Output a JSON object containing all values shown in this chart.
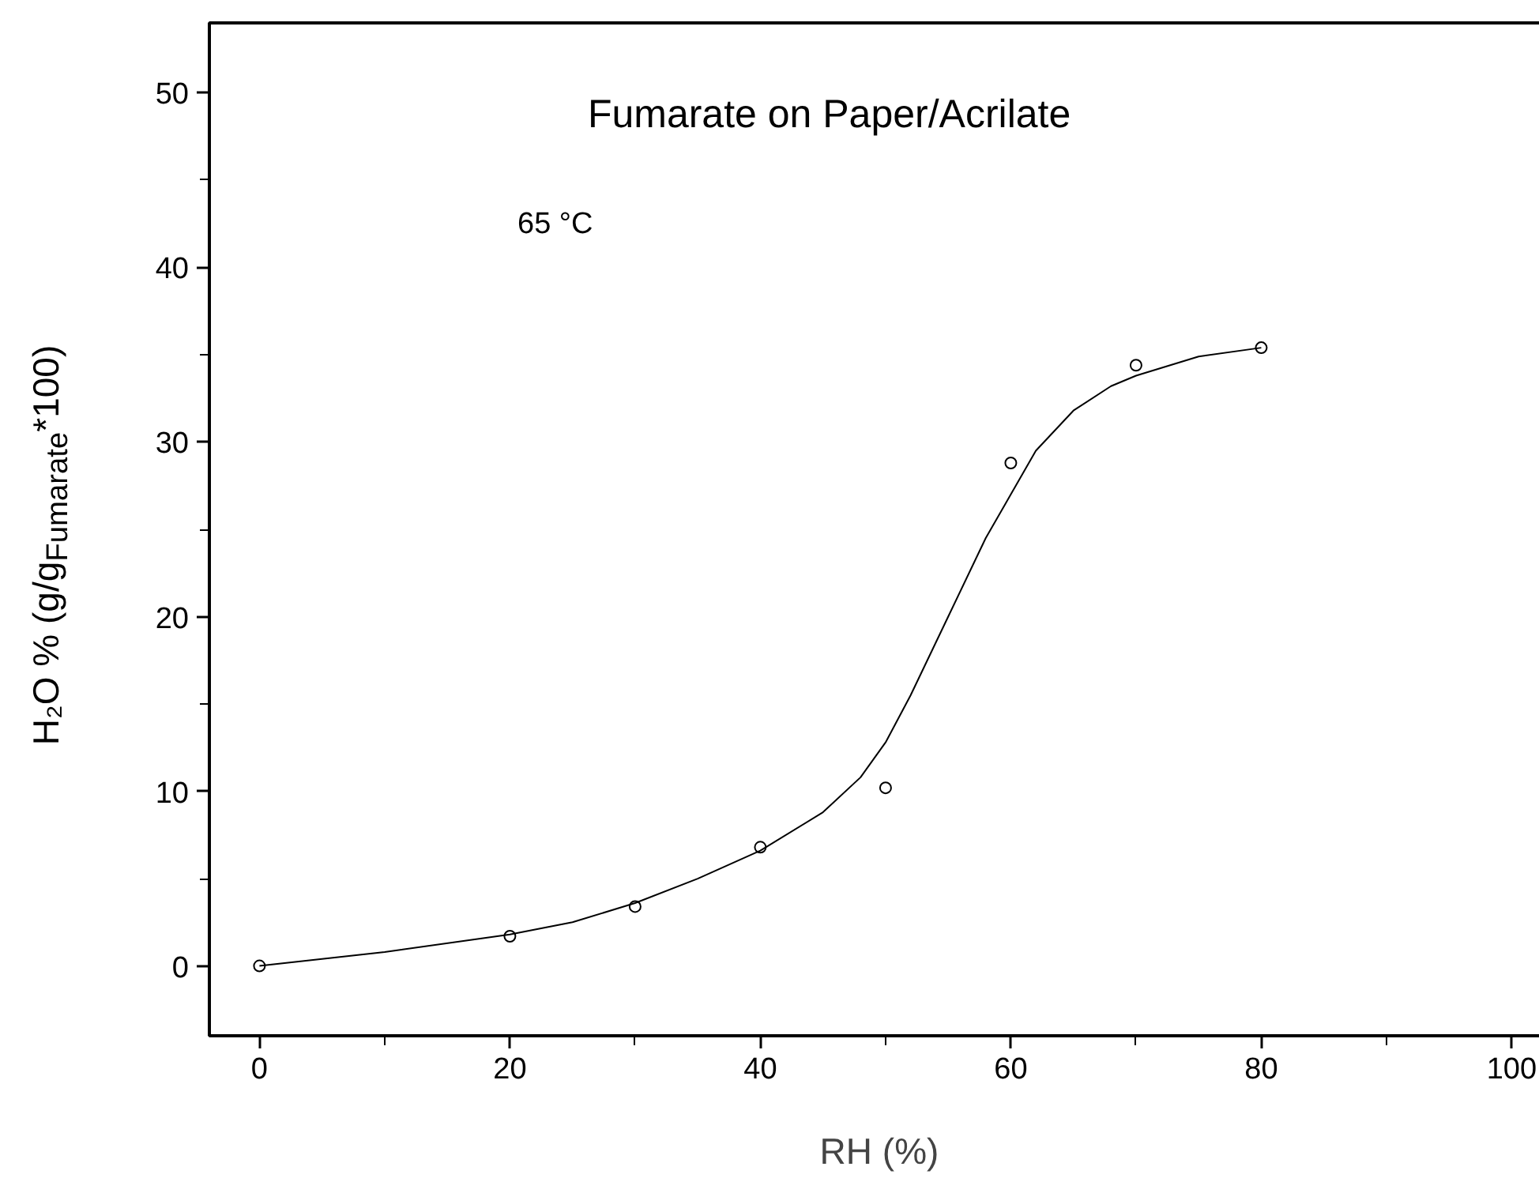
{
  "chart_data": {
    "type": "scatter",
    "title": "Fumarate on Paper/Acrilate",
    "xlabel": "RH (%)",
    "ylabel": "H₂O % (g/g$_{Fumarate}$*100)",
    "annotations": [
      "65 °C"
    ],
    "x": [
      0,
      20,
      30,
      40,
      50,
      60,
      70,
      80
    ],
    "series": [
      {
        "type": "scatter",
        "color": "#000000",
        "marker": "circle",
        "values": [
          0,
          1.7,
          3.4,
          6.8,
          10.2,
          28.8,
          34.4,
          35.4
        ]
      },
      {
        "type": "line",
        "color": "#000000",
        "marker": "none",
        "x": [
          0,
          10,
          20,
          25,
          30,
          35,
          40,
          45,
          48,
          50,
          52,
          55,
          58,
          60,
          62,
          65,
          68,
          70,
          75,
          80
        ],
        "values": [
          0,
          0.8,
          1.8,
          2.5,
          3.6,
          5.0,
          6.6,
          8.8,
          10.8,
          12.8,
          15.5,
          20.0,
          24.5,
          27.0,
          29.5,
          31.8,
          33.2,
          33.8,
          34.9,
          35.4
        ]
      }
    ],
    "xlim": [
      -4,
      103
    ],
    "ylim": [
      -4,
      54
    ],
    "xticks": [
      0,
      20,
      40,
      60,
      80,
      100
    ],
    "yticks": [
      0,
      10,
      20,
      30,
      40,
      50
    ],
    "grid": false
  }
}
